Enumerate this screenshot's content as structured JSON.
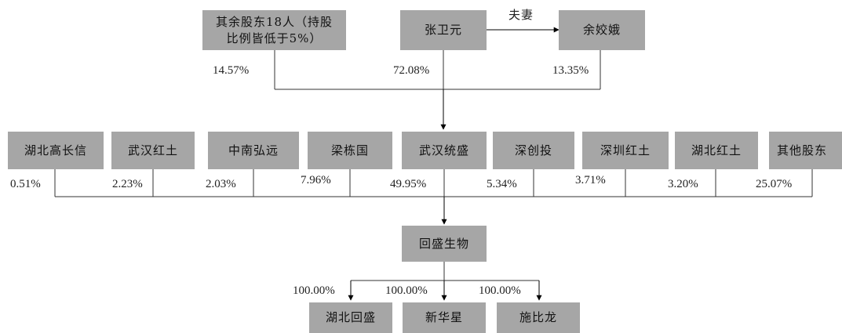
{
  "top_shareholders": {
    "others18": "其余股东18人（持股比例皆低于5%）",
    "others18_line1": "其余股东18人（持股",
    "others18_line2": "比例皆低于5%）",
    "zhang": "张卫元",
    "yu": "余姣娥",
    "spouse_label": "夫妻",
    "pct_others18": "14.57%",
    "pct_zhang": "72.08%",
    "pct_yu": "13.35%"
  },
  "company": {
    "name": "武汉统盛"
  },
  "mid_shareholders": [
    {
      "name": "湖北高长信",
      "pct": "0.51%"
    },
    {
      "name": "武汉红土",
      "pct": "2.23%"
    },
    {
      "name": "中南弘远",
      "pct": "2.03%"
    },
    {
      "name": "梁栋国",
      "pct": "7.96%"
    },
    {
      "name": "武汉统盛",
      "pct": "49.95%"
    },
    {
      "name": "深创投",
      "pct": "5.34%"
    },
    {
      "name": "深圳红土",
      "pct": "3.71%"
    },
    {
      "name": "湖北红土",
      "pct": "3.20%"
    },
    {
      "name": "其他股东",
      "pct": "25.07%"
    }
  ],
  "target": {
    "name": "回盛生物"
  },
  "subsidiaries": [
    {
      "name": "湖北回盛",
      "pct": "100.00%"
    },
    {
      "name": "新华星",
      "pct": "100.00%"
    },
    {
      "name": "施比龙",
      "pct": "100.00%"
    }
  ]
}
